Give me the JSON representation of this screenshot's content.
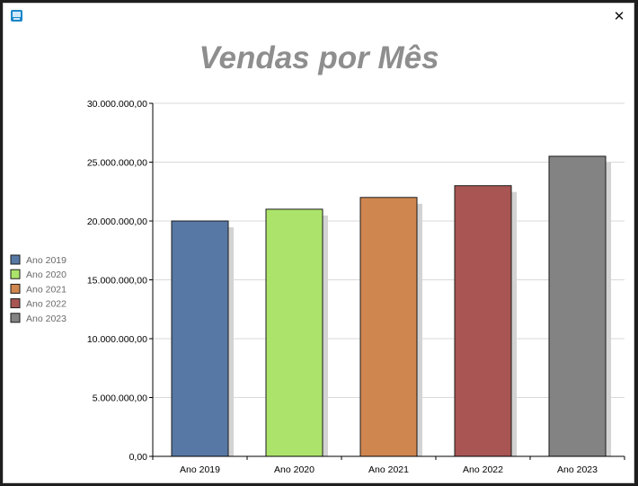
{
  "window": {
    "icon": "app-window-icon",
    "close_label": "✕"
  },
  "chart_data": {
    "type": "bar",
    "title": "Vendas por Mês",
    "xlabel": "",
    "ylabel": "",
    "categories": [
      "Ano 2019",
      "Ano 2020",
      "Ano 2021",
      "Ano 2022",
      "Ano 2023"
    ],
    "values": [
      20000000,
      21000000,
      22000000,
      23000000,
      25500000
    ],
    "colors": [
      "#5778a5",
      "#ace46b",
      "#d0874f",
      "#a85553",
      "#838383"
    ],
    "ylim": [
      0,
      30000000
    ],
    "yticks": [
      0,
      5000000,
      10000000,
      15000000,
      20000000,
      25000000,
      30000000
    ],
    "ytick_labels": [
      "0,00",
      "5.000.000,00",
      "10.000.000,00",
      "15.000.000,00",
      "20.000.000,00",
      "25.000.000,00",
      "30.000.000,00"
    ],
    "grid": true,
    "legend": {
      "placement": "left",
      "entries": [
        "Ano 2019",
        "Ano 2020",
        "Ano 2021",
        "Ano 2022",
        "Ano 2023"
      ]
    }
  }
}
